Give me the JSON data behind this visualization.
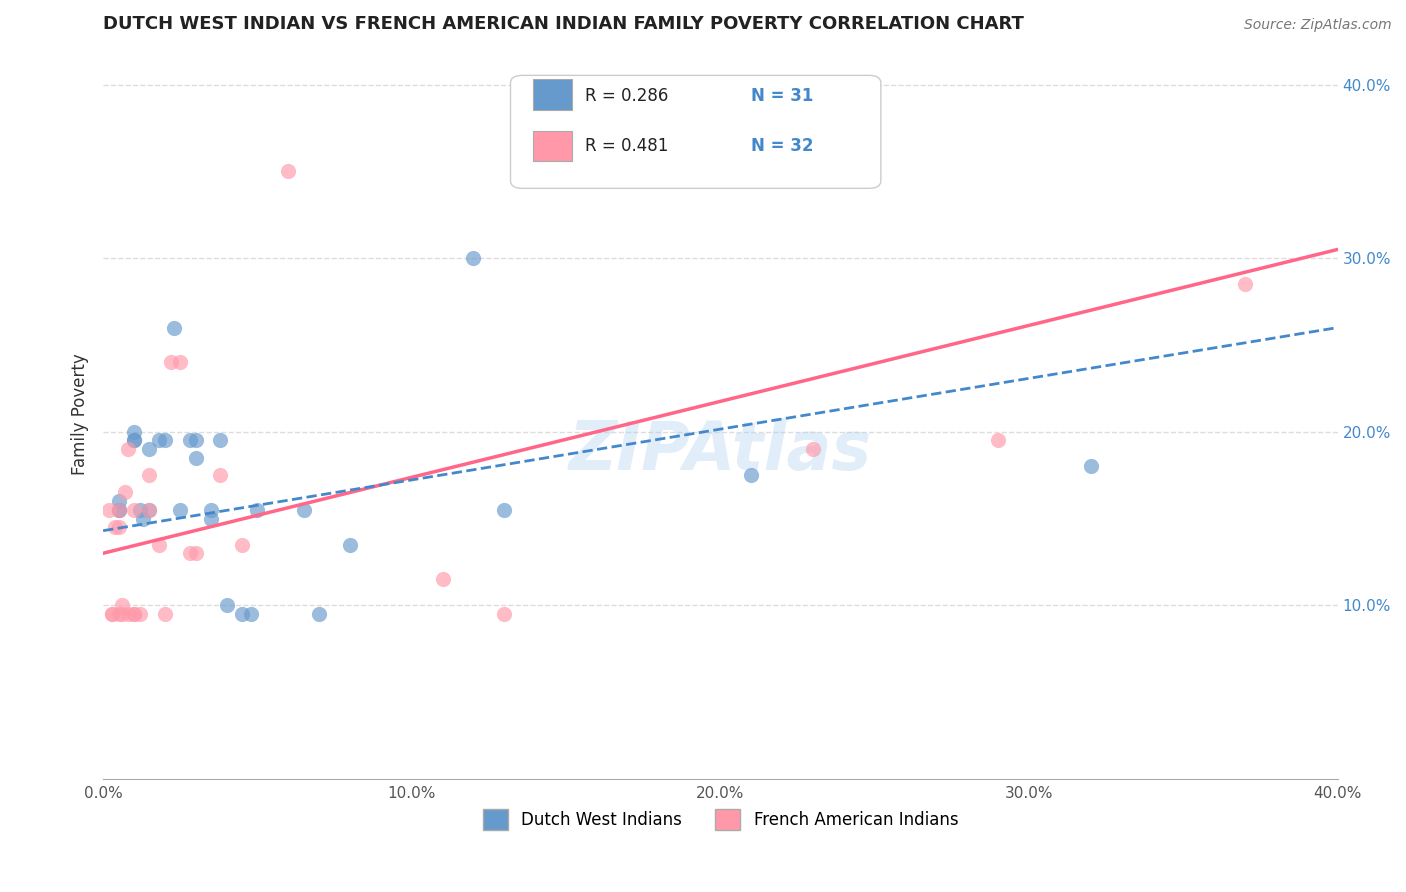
{
  "title": "DUTCH WEST INDIAN VS FRENCH AMERICAN INDIAN FAMILY POVERTY CORRELATION CHART",
  "source": "Source: ZipAtlas.com",
  "ylabel": "Family Poverty",
  "xlim": [
    0.0,
    0.4
  ],
  "ylim": [
    0.0,
    0.42
  ],
  "xticks": [
    0.0,
    0.1,
    0.2,
    0.3,
    0.4
  ],
  "yticks_right": [
    0.1,
    0.2,
    0.3,
    0.4
  ],
  "xticklabels": [
    "0.0%",
    "10.0%",
    "20.0%",
    "30.0%",
    "40.0%"
  ],
  "yticklabels_right": [
    "10.0%",
    "20.0%",
    "30.0%",
    "40.0%"
  ],
  "watermark": "ZIPAtlas",
  "legend_r1": "R = 0.286",
  "legend_n1": "N = 31",
  "legend_r2": "R = 0.481",
  "legend_n2": "N = 32",
  "blue_color": "#6699CC",
  "pink_color": "#FF99AA",
  "line_blue": "#4488CC",
  "line_pink": "#FF6688",
  "blue_scatter": [
    [
      0.005,
      0.155
    ],
    [
      0.005,
      0.16
    ],
    [
      0.005,
      0.155
    ],
    [
      0.01,
      0.195
    ],
    [
      0.01,
      0.2
    ],
    [
      0.01,
      0.195
    ],
    [
      0.012,
      0.155
    ],
    [
      0.013,
      0.15
    ],
    [
      0.015,
      0.19
    ],
    [
      0.015,
      0.155
    ],
    [
      0.018,
      0.195
    ],
    [
      0.02,
      0.195
    ],
    [
      0.023,
      0.26
    ],
    [
      0.025,
      0.155
    ],
    [
      0.028,
      0.195
    ],
    [
      0.03,
      0.195
    ],
    [
      0.03,
      0.185
    ],
    [
      0.035,
      0.155
    ],
    [
      0.035,
      0.15
    ],
    [
      0.038,
      0.195
    ],
    [
      0.04,
      0.1
    ],
    [
      0.045,
      0.095
    ],
    [
      0.048,
      0.095
    ],
    [
      0.05,
      0.155
    ],
    [
      0.065,
      0.155
    ],
    [
      0.07,
      0.095
    ],
    [
      0.08,
      0.135
    ],
    [
      0.12,
      0.3
    ],
    [
      0.13,
      0.155
    ],
    [
      0.21,
      0.175
    ],
    [
      0.32,
      0.18
    ]
  ],
  "pink_scatter": [
    [
      0.002,
      0.155
    ],
    [
      0.003,
      0.095
    ],
    [
      0.003,
      0.095
    ],
    [
      0.004,
      0.145
    ],
    [
      0.005,
      0.145
    ],
    [
      0.005,
      0.155
    ],
    [
      0.005,
      0.095
    ],
    [
      0.006,
      0.095
    ],
    [
      0.006,
      0.1
    ],
    [
      0.007,
      0.165
    ],
    [
      0.008,
      0.19
    ],
    [
      0.008,
      0.095
    ],
    [
      0.01,
      0.095
    ],
    [
      0.01,
      0.155
    ],
    [
      0.01,
      0.095
    ],
    [
      0.012,
      0.095
    ],
    [
      0.015,
      0.155
    ],
    [
      0.015,
      0.175
    ],
    [
      0.018,
      0.135
    ],
    [
      0.02,
      0.095
    ],
    [
      0.022,
      0.24
    ],
    [
      0.025,
      0.24
    ],
    [
      0.028,
      0.13
    ],
    [
      0.03,
      0.13
    ],
    [
      0.038,
      0.175
    ],
    [
      0.045,
      0.135
    ],
    [
      0.06,
      0.35
    ],
    [
      0.11,
      0.115
    ],
    [
      0.13,
      0.095
    ],
    [
      0.23,
      0.19
    ],
    [
      0.29,
      0.195
    ],
    [
      0.37,
      0.285
    ]
  ],
  "blue_line_x": [
    0.0,
    0.4
  ],
  "blue_line_y": [
    0.143,
    0.26
  ],
  "pink_line_x": [
    0.0,
    0.4
  ],
  "pink_line_y": [
    0.13,
    0.305
  ],
  "grid_color": "#DDDDDD",
  "bg_color": "#FFFFFF"
}
